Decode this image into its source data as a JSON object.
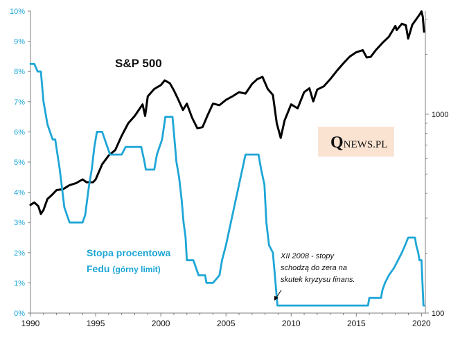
{
  "chart_data": {
    "type": "line",
    "x_range": [
      1990,
      2020.3
    ],
    "x_ticks": [
      "1990",
      "1995",
      "2000",
      "2005",
      "2010",
      "2015",
      "2020"
    ],
    "y_left": {
      "label": "Stopa procentowa Fedu (górny limit)",
      "range": [
        0,
        10
      ],
      "ticks": [
        "0%",
        "1%",
        "2%",
        "3%",
        "4%",
        "5%",
        "6%",
        "7%",
        "8%",
        "9%",
        "10%"
      ]
    },
    "y_right": {
      "scale": "log",
      "range": [
        100,
        3300
      ],
      "ticks": [
        "100",
        "1000"
      ]
    },
    "series": [
      {
        "name": "S&P 500",
        "axis": "right",
        "color": "#000000",
        "x": [
          1990.0,
          1990.3,
          1990.6,
          1990.8,
          1991.0,
          1991.3,
          1991.6,
          1992.0,
          1992.5,
          1993.0,
          1993.5,
          1994.0,
          1994.3,
          1994.8,
          1995.0,
          1995.5,
          1996.0,
          1996.5,
          1997.0,
          1997.5,
          1998.0,
          1998.6,
          1998.8,
          1999.0,
          1999.5,
          2000.0,
          2000.3,
          2000.7,
          2001.0,
          2001.3,
          2001.7,
          2002.0,
          2002.4,
          2002.8,
          2003.2,
          2003.6,
          2004.0,
          2004.5,
          2005.0,
          2005.5,
          2006.0,
          2006.5,
          2007.0,
          2007.4,
          2007.8,
          2008.2,
          2008.6,
          2008.9,
          2009.2,
          2009.5,
          2010.0,
          2010.5,
          2011.0,
          2011.4,
          2011.7,
          2012.0,
          2012.5,
          2013.0,
          2013.5,
          2014.0,
          2014.5,
          2015.0,
          2015.5,
          2015.8,
          2016.1,
          2016.5,
          2017.0,
          2017.5,
          2018.0,
          2018.1,
          2018.5,
          2018.8,
          2018.98,
          2019.3,
          2019.6,
          2019.9,
          2020.0,
          2020.1,
          2020.2
        ],
        "values": [
          350,
          360,
          345,
          315,
          330,
          375,
          390,
          415,
          420,
          440,
          450,
          470,
          455,
          455,
          470,
          560,
          620,
          660,
          780,
          900,
          980,
          1120,
          980,
          1230,
          1340,
          1400,
          1480,
          1430,
          1320,
          1200,
          1050,
          1130,
          960,
          850,
          860,
          990,
          1130,
          1110,
          1180,
          1230,
          1290,
          1270,
          1420,
          1500,
          1540,
          1340,
          1250,
          900,
          760,
          930,
          1120,
          1070,
          1290,
          1350,
          1160,
          1330,
          1380,
          1500,
          1650,
          1800,
          1950,
          2050,
          2100,
          1930,
          1940,
          2100,
          2280,
          2450,
          2780,
          2650,
          2850,
          2800,
          2400,
          2820,
          3000,
          3200,
          3290,
          3100,
          2600
        ]
      },
      {
        "name": "Stopa procentowa Fedu",
        "axis": "left",
        "color": "#1ea6d6",
        "x": [
          1990.0,
          1990.3,
          1990.55,
          1990.8,
          1991.0,
          1991.3,
          1991.7,
          1991.9,
          1992.25,
          1992.6,
          1993.0,
          1993.5,
          1994.0,
          1994.2,
          1994.35,
          1994.5,
          1994.7,
          1994.9,
          1995.1,
          1995.5,
          1995.9,
          1996.1,
          1996.5,
          1997.0,
          1997.3,
          1997.6,
          1998.0,
          1998.5,
          1998.75,
          1998.85,
          1999.5,
          1999.7,
          1999.9,
          2000.1,
          2000.35,
          2000.5,
          2000.9,
          2001.0,
          2001.2,
          2001.4,
          2001.6,
          2001.75,
          2001.9,
          2002.0,
          2002.5,
          2002.9,
          2003.0,
          2003.4,
          2003.5,
          2004.0,
          2004.5,
          2004.7,
          2005.0,
          2005.5,
          2006.0,
          2006.5,
          2007.0,
          2007.5,
          2007.7,
          2007.95,
          2008.1,
          2008.3,
          2008.6,
          2008.8,
          2008.95,
          2009.5,
          2012.0,
          2015.9,
          2016.0,
          2016.9,
          2017.0,
          2017.2,
          2017.5,
          2017.9,
          2018.2,
          2018.5,
          2018.75,
          2018.98,
          2019.5,
          2019.6,
          2019.75,
          2019.85,
          2020.0,
          2020.15,
          2020.2
        ],
        "values": [
          8.25,
          8.25,
          8.0,
          8.0,
          7.0,
          6.25,
          5.75,
          5.75,
          4.75,
          3.5,
          3.0,
          3.0,
          3.0,
          3.25,
          3.75,
          4.25,
          4.75,
          5.5,
          6.0,
          6.0,
          5.5,
          5.25,
          5.25,
          5.25,
          5.5,
          5.5,
          5.5,
          5.5,
          5.0,
          4.75,
          4.75,
          5.25,
          5.5,
          5.75,
          6.5,
          6.5,
          6.5,
          6.0,
          5.0,
          4.5,
          3.75,
          3.0,
          2.5,
          1.75,
          1.75,
          1.25,
          1.25,
          1.25,
          1.0,
          1.0,
          1.25,
          1.75,
          2.25,
          3.25,
          4.25,
          5.25,
          5.25,
          5.25,
          4.75,
          4.25,
          3.0,
          2.25,
          2.0,
          1.0,
          0.25,
          0.25,
          0.25,
          0.25,
          0.5,
          0.5,
          0.75,
          1.0,
          1.25,
          1.5,
          1.75,
          2.0,
          2.25,
          2.5,
          2.5,
          2.25,
          2.0,
          1.75,
          1.75,
          0.25,
          0.25
        ]
      }
    ],
    "annotations": [
      {
        "text_lines": [
          "XII 2008 - stopy",
          "schodzą do zera na",
          "skutek kryzysu finans."
        ]
      }
    ]
  },
  "labels": {
    "sp500": "S&P 500",
    "rate_line1": "Stopa procentowa",
    "rate_line2": "Fedu",
    "rate_sub": "(górny limit)"
  },
  "logo": {
    "q": "Q",
    "rest": "NEWS.PL",
    "background": "#fbe3d2"
  },
  "colors": {
    "rate": "#1ea6d6",
    "sp500": "#000000",
    "axis": "#7f7f7f"
  }
}
